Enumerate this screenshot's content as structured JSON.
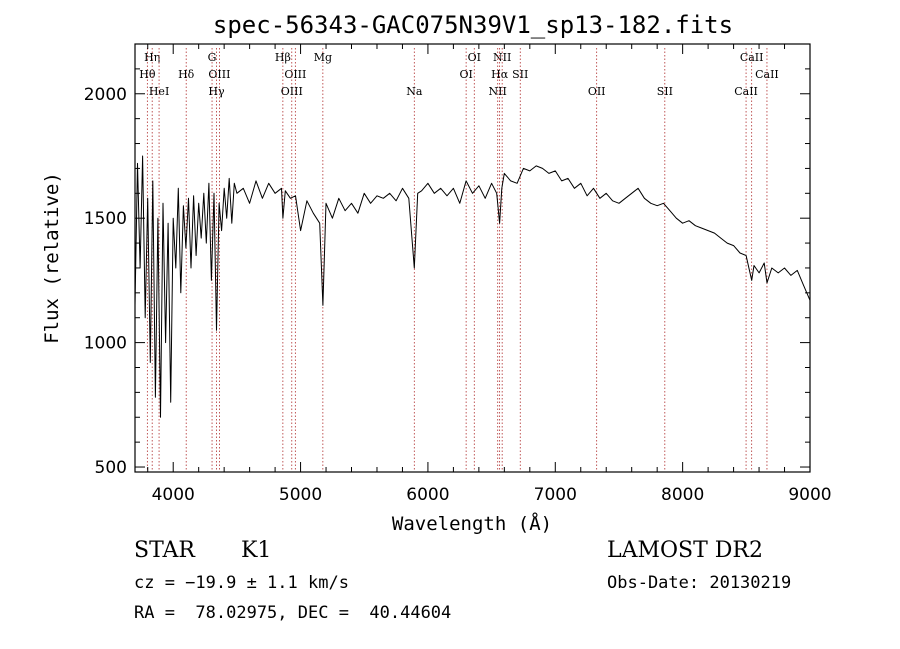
{
  "chart_data": {
    "type": "line",
    "title": "spec-56343-GAC075N39V1_sp13-182.fits",
    "xlabel": "Wavelength (Å)",
    "ylabel": "Flux (relative)",
    "xlim": [
      3700,
      9000
    ],
    "ylim": [
      480,
      2200
    ],
    "xticks": [
      4000,
      5000,
      6000,
      7000,
      8000,
      9000
    ],
    "yticks": [
      500,
      1000,
      1500,
      2000
    ],
    "grid": false,
    "series": [
      {
        "color": "#000000",
        "x": [
          3700,
          3720,
          3740,
          3760,
          3780,
          3800,
          3820,
          3840,
          3860,
          3880,
          3900,
          3920,
          3940,
          3960,
          3980,
          4000,
          4020,
          4040,
          4060,
          4080,
          4100,
          4120,
          4140,
          4160,
          4180,
          4200,
          4220,
          4240,
          4260,
          4280,
          4300,
          4320,
          4340,
          4360,
          4380,
          4400,
          4420,
          4440,
          4460,
          4480,
          4500,
          4550,
          4600,
          4650,
          4700,
          4750,
          4800,
          4850,
          4861,
          4880,
          4920,
          4960,
          5000,
          5050,
          5100,
          5150,
          5175,
          5200,
          5250,
          5300,
          5350,
          5400,
          5450,
          5500,
          5550,
          5600,
          5650,
          5700,
          5750,
          5800,
          5850,
          5893,
          5920,
          5950,
          6000,
          6050,
          6100,
          6150,
          6200,
          6250,
          6300,
          6350,
          6400,
          6450,
          6500,
          6540,
          6563,
          6580,
          6600,
          6650,
          6700,
          6750,
          6800,
          6850,
          6900,
          6950,
          7000,
          7050,
          7100,
          7150,
          7200,
          7250,
          7300,
          7350,
          7400,
          7450,
          7500,
          7550,
          7600,
          7650,
          7700,
          7750,
          7800,
          7850,
          7900,
          7950,
          8000,
          8050,
          8100,
          8150,
          8200,
          8250,
          8300,
          8350,
          8400,
          8450,
          8498,
          8520,
          8542,
          8560,
          8600,
          8640,
          8662,
          8700,
          8750,
          8800,
          8850,
          8900,
          8950,
          9000
        ],
        "y": [
          1150,
          1720,
          1300,
          1750,
          1100,
          1580,
          920,
          1650,
          780,
          1500,
          700,
          1560,
          1000,
          1480,
          760,
          1500,
          1300,
          1620,
          1200,
          1550,
          1380,
          1580,
          1300,
          1590,
          1350,
          1560,
          1420,
          1600,
          1400,
          1640,
          1250,
          1600,
          1050,
          1560,
          1450,
          1620,
          1500,
          1660,
          1480,
          1640,
          1600,
          1620,
          1560,
          1650,
          1580,
          1640,
          1600,
          1620,
          1500,
          1610,
          1580,
          1590,
          1450,
          1570,
          1520,
          1480,
          1150,
          1560,
          1500,
          1580,
          1530,
          1560,
          1520,
          1600,
          1560,
          1590,
          1580,
          1600,
          1570,
          1620,
          1580,
          1300,
          1600,
          1610,
          1640,
          1600,
          1620,
          1590,
          1620,
          1560,
          1650,
          1600,
          1630,
          1580,
          1640,
          1600,
          1480,
          1620,
          1680,
          1650,
          1640,
          1700,
          1690,
          1710,
          1700,
          1680,
          1690,
          1650,
          1660,
          1620,
          1640,
          1590,
          1620,
          1580,
          1600,
          1570,
          1560,
          1580,
          1600,
          1620,
          1580,
          1560,
          1550,
          1560,
          1530,
          1500,
          1480,
          1490,
          1470,
          1460,
          1450,
          1440,
          1420,
          1400,
          1390,
          1360,
          1350,
          1300,
          1250,
          1310,
          1280,
          1320,
          1240,
          1300,
          1280,
          1300,
          1270,
          1290,
          1230,
          1170
        ]
      }
    ],
    "line_markers": [
      {
        "label": "Hη",
        "x": 3835,
        "row": 0
      },
      {
        "label": "Hθ",
        "x": 3797,
        "row": 1
      },
      {
        "label": "HeI",
        "x": 3889,
        "row": 2
      },
      {
        "label": "Hδ",
        "x": 4102,
        "row": 1
      },
      {
        "label": "G",
        "x": 4305,
        "row": 0
      },
      {
        "label": "OIII",
        "x": 4363,
        "row": 1
      },
      {
        "label": "Hγ",
        "x": 4340,
        "row": 2
      },
      {
        "label": "Hβ",
        "x": 4861,
        "row": 0
      },
      {
        "label": "OIII",
        "x": 4959,
        "row": 1
      },
      {
        "label": "OIII",
        "x": 4931,
        "row": 2
      },
      {
        "label": "Mg",
        "x": 5175,
        "row": 0
      },
      {
        "label": "Na",
        "x": 5893,
        "row": 2
      },
      {
        "label": "OI",
        "x": 6364,
        "row": 0
      },
      {
        "label": "OI",
        "x": 6300,
        "row": 1
      },
      {
        "label": "NII",
        "x": 6583,
        "row": 0
      },
      {
        "label": "Hα",
        "x": 6563,
        "row": 1
      },
      {
        "label": "SII",
        "x": 6725,
        "row": 1
      },
      {
        "label": "NII",
        "x": 6548,
        "row": 2
      },
      {
        "label": "OII",
        "x": 7325,
        "row": 2
      },
      {
        "label": "SII",
        "x": 7860,
        "row": 2
      },
      {
        "label": "CaII",
        "x": 8542,
        "row": 0
      },
      {
        "label": "CaII",
        "x": 8662,
        "row": 1
      },
      {
        "label": "CaII",
        "x": 8498,
        "row": 2
      }
    ],
    "marker_color": "#b03030"
  },
  "info": {
    "class": "STAR",
    "subclass": "K1",
    "survey": "LAMOST DR2",
    "cz": "cz = −19.9 ± 1.1 km/s",
    "obs_date": "Obs-Date: 20130219",
    "coords": "RA =  78.02975, DEC =  40.44604"
  }
}
